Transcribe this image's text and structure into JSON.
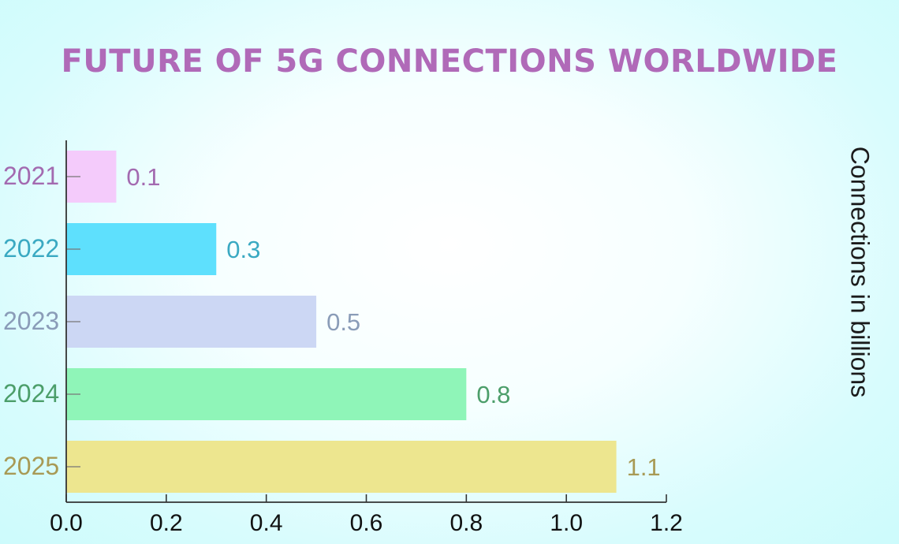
{
  "title": "FUTURE OF 5G CONNECTIONS WORLDWIDE",
  "colors": {
    "title": "#b06ab8",
    "axis": "#333333",
    "background": "#e4fdfd"
  },
  "chart_data": {
    "type": "bar",
    "orientation": "horizontal",
    "title": "FUTURE OF 5G CONNECTIONS WORLDWIDE",
    "ylabel": "Connections in billions",
    "xlabel": "",
    "xlim": [
      0.0,
      1.2
    ],
    "xticks": [
      "0.0",
      "0.2",
      "0.4",
      "0.6",
      "0.8",
      "1.0",
      "1.2"
    ],
    "categories": [
      "2021",
      "2022",
      "2023",
      "2024",
      "2025"
    ],
    "values": [
      0.1,
      0.3,
      0.5,
      0.8,
      1.1
    ],
    "value_labels": [
      "0.1",
      "0.3",
      "0.5",
      "0.8",
      "1.1"
    ],
    "bar_colors": [
      "#f4cbfb",
      "#5ee0fd",
      "#ccd7f4",
      "#8ff5b8",
      "#ede68f"
    ],
    "label_colors": [
      "#a36ab0",
      "#3aa9c2",
      "#8a9cb8",
      "#4c9e6a",
      "#a89a55"
    ],
    "grid": false,
    "legend": "none"
  }
}
